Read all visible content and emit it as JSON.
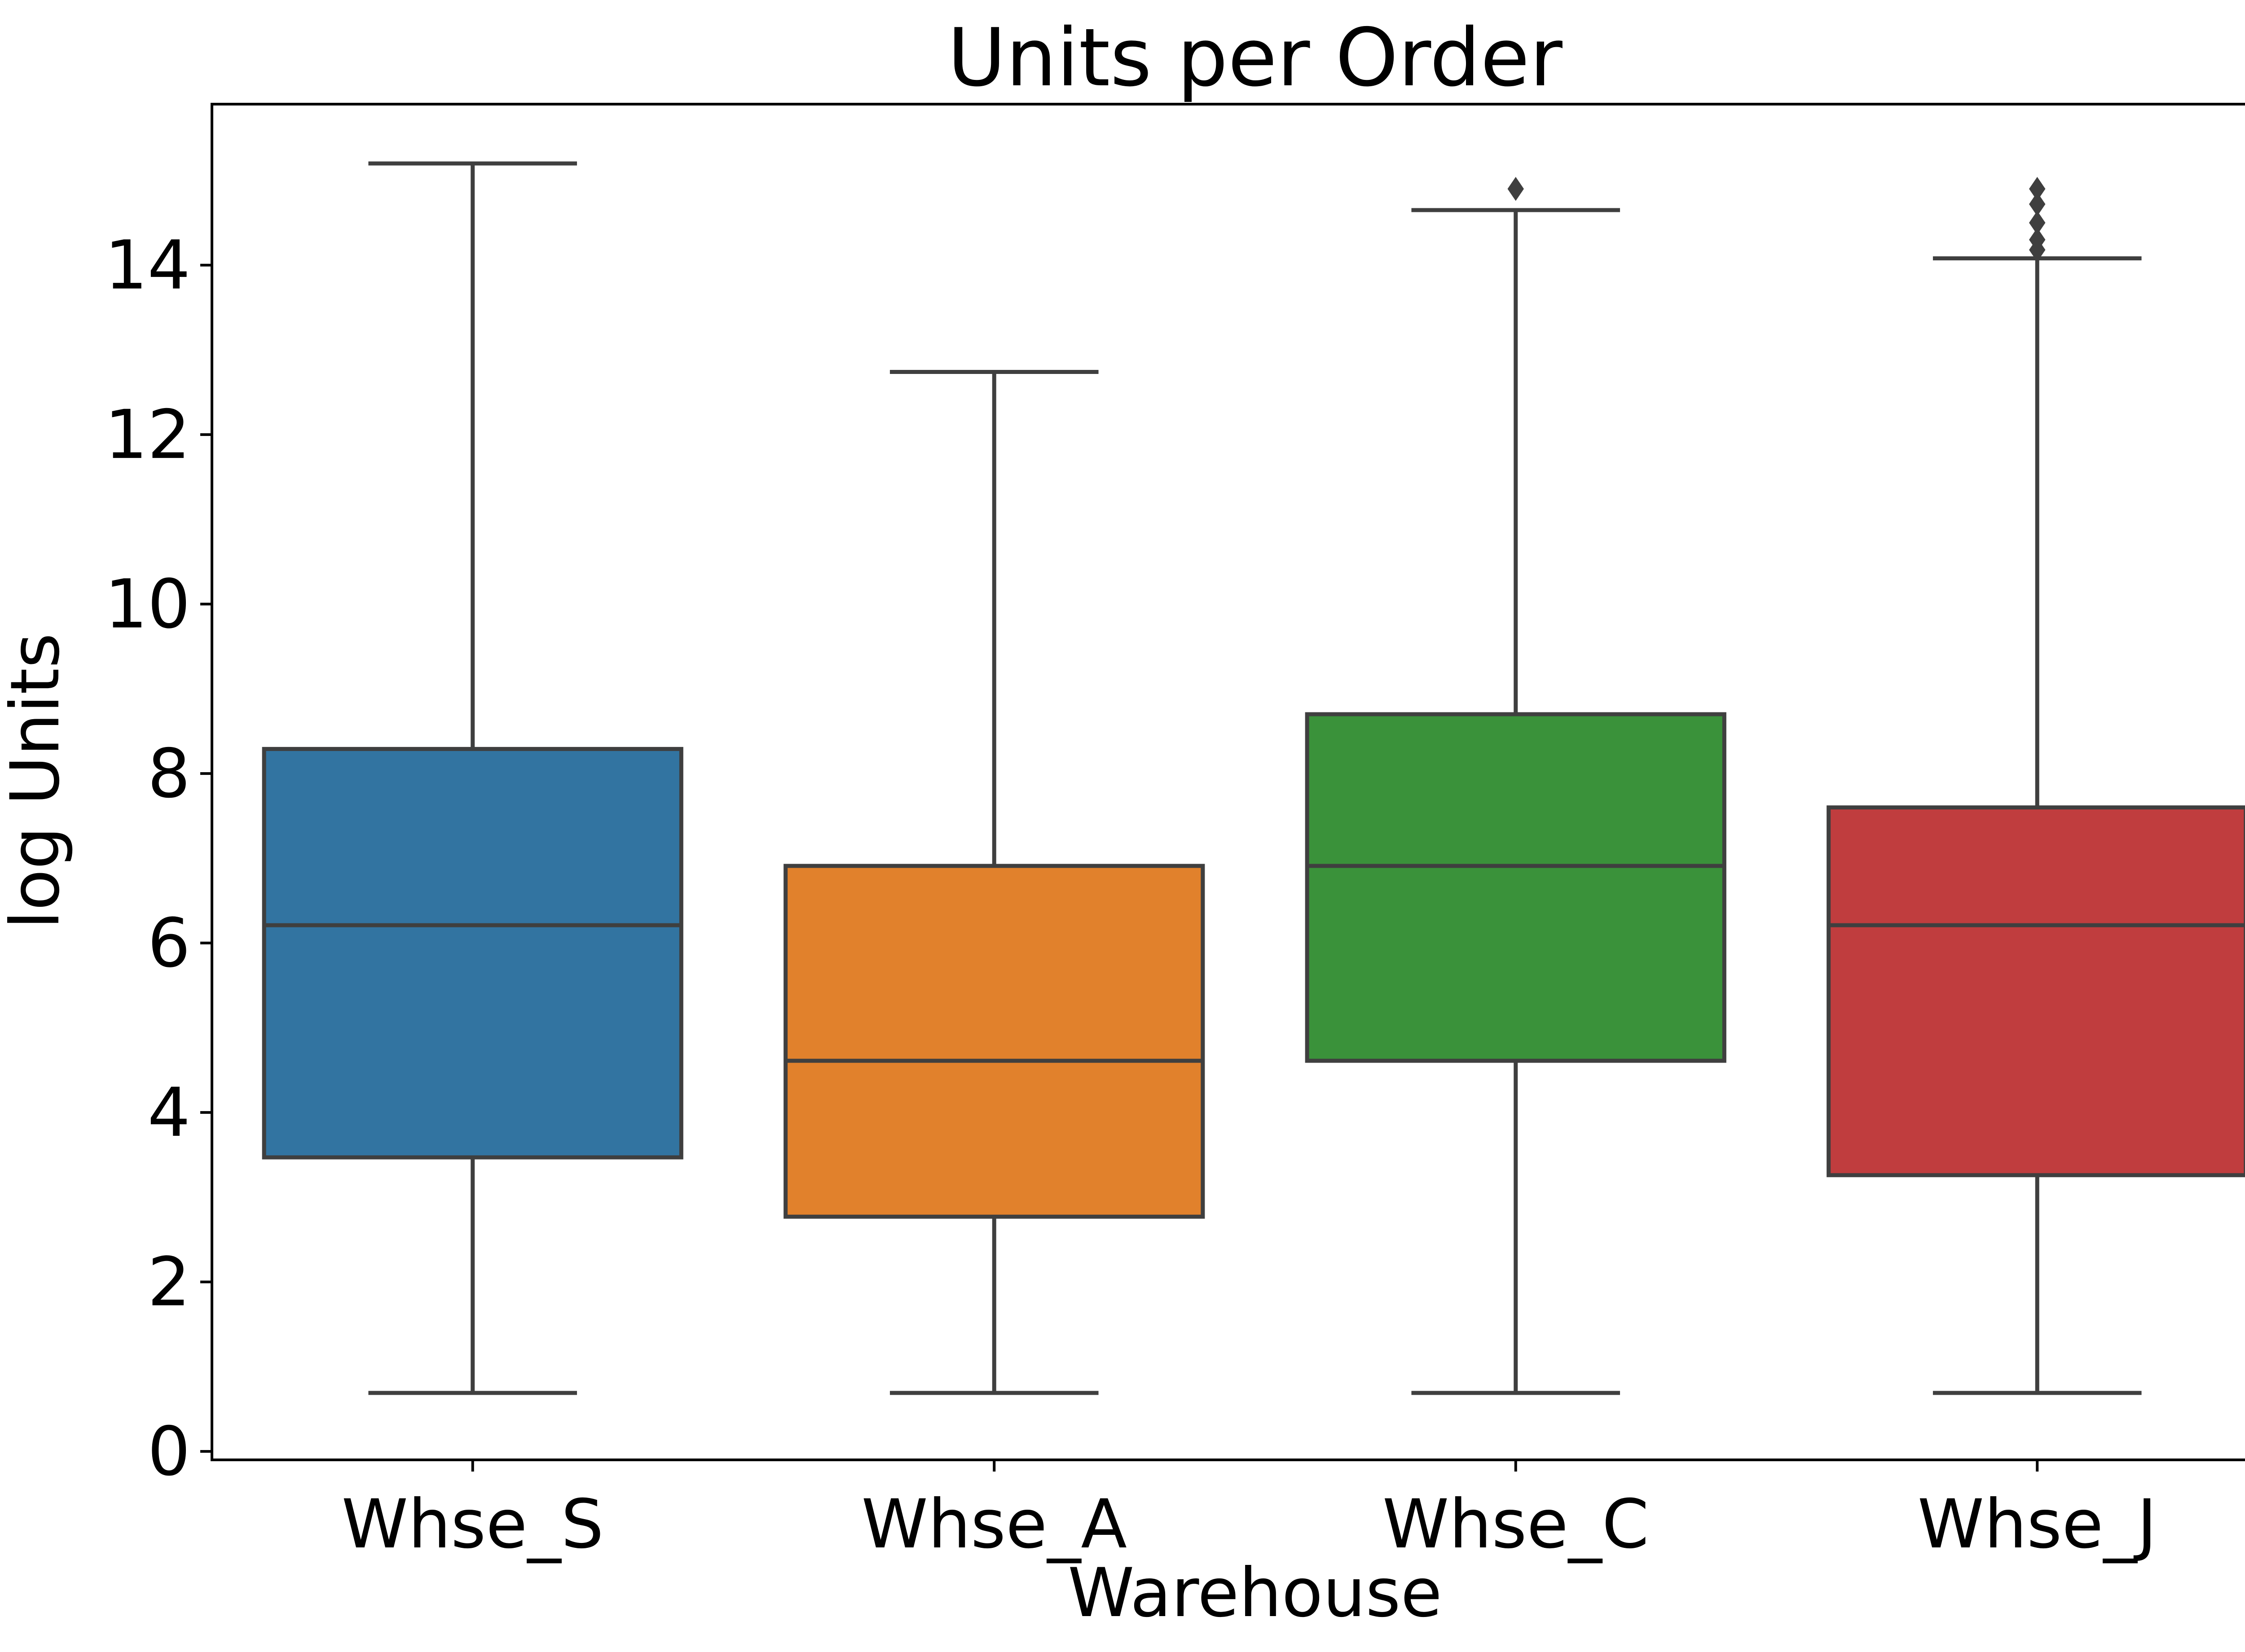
{
  "chart_data": {
    "type": "box",
    "title": "Units per Order",
    "xlabel": "Warehouse",
    "ylabel": "log Units",
    "ylim": [
      -0.1,
      15.9
    ],
    "yticks": [
      0,
      2,
      4,
      6,
      8,
      10,
      12,
      14
    ],
    "grid": false,
    "categories": [
      "Whse_S",
      "Whse_A",
      "Whse_C",
      "Whse_J"
    ],
    "boxes": [
      {
        "category": "Whse_S",
        "whisker_low": 0.69,
        "q1": 3.47,
        "median": 6.21,
        "q3": 8.29,
        "whisker_high": 15.2,
        "outliers": [],
        "color": "#3274a1"
      },
      {
        "category": "Whse_A",
        "whisker_low": 0.69,
        "q1": 2.77,
        "median": 4.61,
        "q3": 6.91,
        "whisker_high": 12.74,
        "outliers": [],
        "color": "#e1812c"
      },
      {
        "category": "Whse_C",
        "whisker_low": 0.69,
        "q1": 4.61,
        "median": 6.91,
        "q3": 8.7,
        "whisker_high": 14.65,
        "outliers": [
          14.9
        ],
        "color": "#3a923a"
      },
      {
        "category": "Whse_J",
        "whisker_low": 0.69,
        "q1": 3.26,
        "median": 6.21,
        "q3": 7.6,
        "whisker_high": 14.08,
        "outliers": [
          14.18,
          14.3,
          14.5,
          14.72,
          14.9
        ],
        "color": "#c03d3e"
      }
    ],
    "line_color": "#3f3f3f"
  }
}
